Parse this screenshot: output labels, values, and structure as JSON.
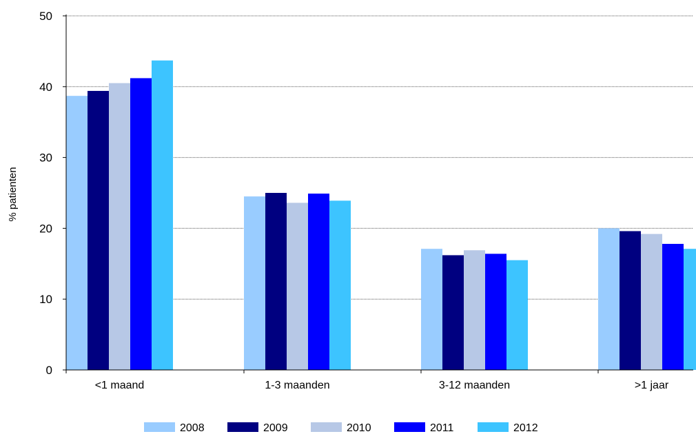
{
  "chart_data": {
    "type": "bar",
    "title": "",
    "xlabel": "",
    "ylabel": "% patienten",
    "ylim": [
      0,
      50
    ],
    "yticks": [
      "0",
      "10",
      "20",
      "30",
      "40",
      "50"
    ],
    "grid": "horizontal dotted",
    "legend_position": "bottom",
    "categories": [
      "<1 maand",
      "1-3 maanden",
      "3-12 maanden",
      ">1 jaar"
    ],
    "series": [
      {
        "name": "2008",
        "color": "#99CCFF",
        "values": [
          38.7,
          24.5,
          17.1,
          20.0
        ]
      },
      {
        "name": "2009",
        "color": "#000080",
        "values": [
          39.4,
          25.0,
          16.2,
          19.6
        ]
      },
      {
        "name": "2010",
        "color": "#B7C8E6",
        "values": [
          40.5,
          23.6,
          16.9,
          19.2
        ]
      },
      {
        "name": "2011",
        "color": "#0000FF",
        "values": [
          41.2,
          24.9,
          16.4,
          17.8
        ]
      },
      {
        "name": "2012",
        "color": "#3DC4FF",
        "values": [
          43.7,
          23.9,
          15.5,
          17.1
        ]
      }
    ]
  }
}
